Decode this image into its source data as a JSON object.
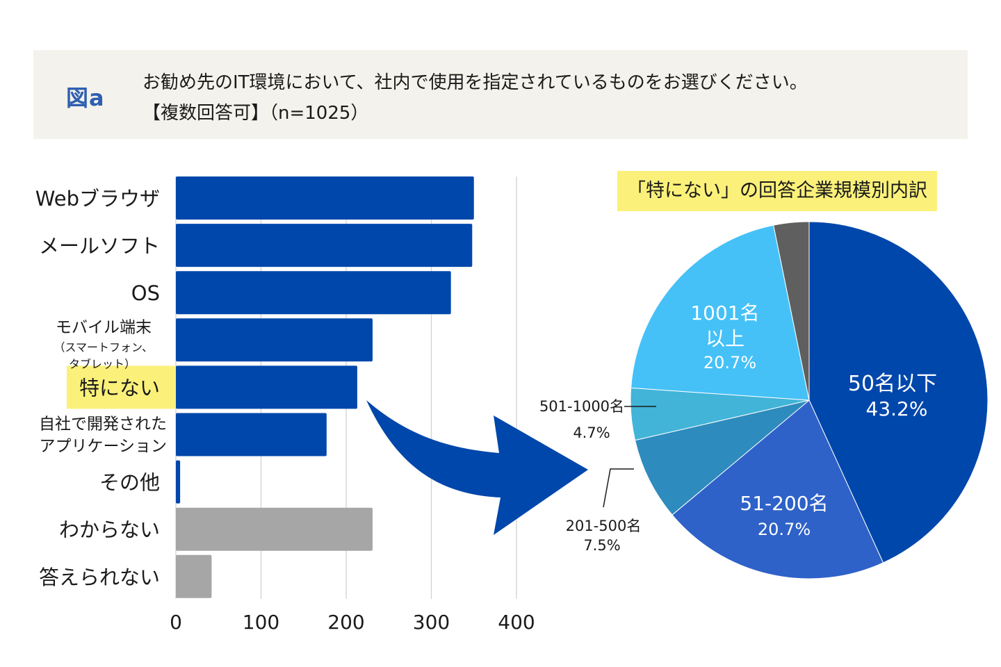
{
  "header": {
    "figure_label": "図a",
    "question": "お勧め先のIT環境において、社内で使用を指定されているものをお選びください。",
    "note": "【複数回答可】（n=1025）"
  },
  "colors": {
    "bar_blue": "#0047ab",
    "bar_gray": "#a6a6a6",
    "arrow": "#0047ab",
    "highlight": "#fbf17a"
  },
  "chart_data": [
    {
      "type": "bar",
      "orientation": "horizontal",
      "categories": [
        [
          "Webブラウザ"
        ],
        [
          "メールソフト"
        ],
        [
          "OS"
        ],
        [
          "モバイル端末",
          "（スマートフォン、",
          "タブレット）"
        ],
        [
          "特にない"
        ],
        [
          "自社で開発された",
          "アプリケーション"
        ],
        [
          "その他"
        ],
        [
          "わからない"
        ],
        [
          "答えられない"
        ]
      ],
      "values": [
        350,
        348,
        323,
        231,
        213,
        177,
        5,
        231,
        42
      ],
      "bar_colors": [
        "#0047ab",
        "#0047ab",
        "#0047ab",
        "#0047ab",
        "#0047ab",
        "#0047ab",
        "#0047ab",
        "#a6a6a6",
        "#a6a6a6"
      ],
      "highlight_category_index": 4,
      "xlim": [
        0,
        400
      ],
      "xticks": [
        0,
        100,
        200,
        300,
        400
      ],
      "grid": true
    },
    {
      "type": "pie",
      "title": "「特にない」の回答企業規模別内訳",
      "slices": [
        {
          "label": "50名以下",
          "value": 43.2,
          "value_label": "43.2%",
          "color": "#0047ab",
          "label_inside": true
        },
        {
          "label": "51-200名",
          "value": 20.7,
          "value_label": "20.7%",
          "color": "#2e62c8",
          "label_inside": true
        },
        {
          "label": "201-500名",
          "value": 7.5,
          "value_label": "7.5%",
          "color": "#2e8bbd",
          "label_inside": false
        },
        {
          "label": "501-1000名",
          "value": 4.7,
          "value_label": "4.7%",
          "color": "#42b4d8",
          "label_inside": false
        },
        {
          "label": "1001名\n以上",
          "value": 20.7,
          "value_label": "20.7%",
          "color": "#45c1f7",
          "label_inside": true
        },
        {
          "label": "",
          "value": 3.2,
          "value_label": "",
          "color": "#5f5f5f",
          "label_inside": false
        }
      ]
    }
  ]
}
